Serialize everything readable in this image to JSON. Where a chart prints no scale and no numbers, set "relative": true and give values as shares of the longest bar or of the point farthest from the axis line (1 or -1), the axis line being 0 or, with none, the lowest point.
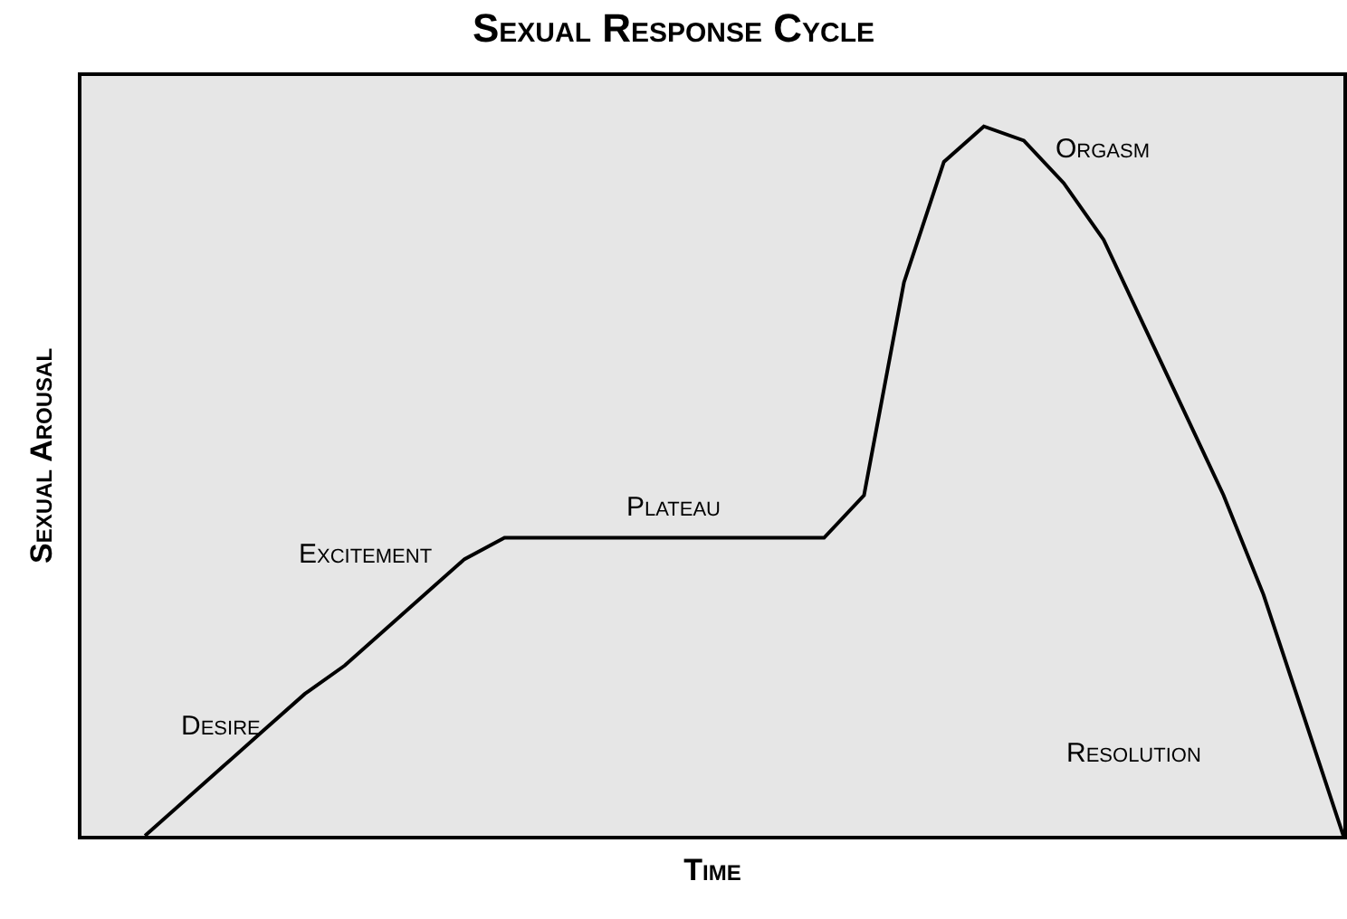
{
  "chart_data": {
    "type": "line",
    "title": "Sexual Response Cycle",
    "xlabel": "Time",
    "ylabel": "Sexual Arousal",
    "relative": true,
    "color": "#000000",
    "marker": "none",
    "line_style": "solid",
    "annotations": [
      "Desire",
      "Excitement",
      "Plateau",
      "Orgasm",
      "Resolution"
    ],
    "categories": [
      null,
      null,
      null,
      null,
      null,
      null,
      null,
      null,
      null,
      null,
      null,
      null,
      null,
      null,
      null,
      null,
      null,
      null,
      null,
      null,
      null,
      null,
      null,
      null,
      null,
      null,
      null,
      null,
      null,
      null,
      null
    ],
    "values": [
      0,
      0.05,
      0.1,
      0.15,
      0.2,
      0.24,
      0.29,
      0.34,
      0.39,
      0.42,
      0.42,
      0.42,
      0.42,
      0.42,
      0.42,
      0.42,
      0.42,
      0.42,
      0.48,
      0.78,
      0.95,
      1,
      0.98,
      0.92,
      0.84,
      0.72,
      0.6,
      0.48,
      0.34,
      0.17,
      0
    ]
  }
}
